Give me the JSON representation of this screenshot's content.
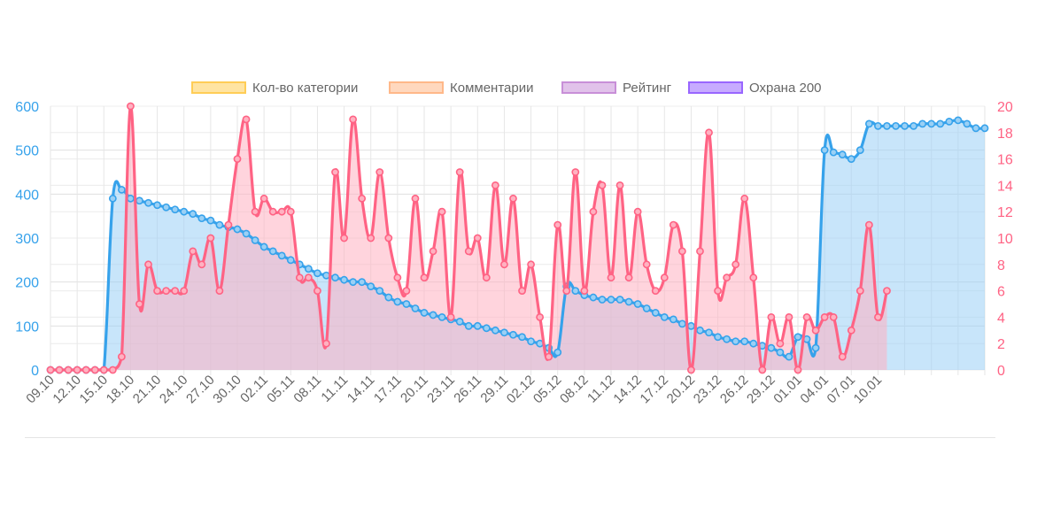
{
  "chart_data": {
    "type": "line",
    "colors": {
      "left_axis": "#36a2eb",
      "right_axis": "#ff6384",
      "series_blue": "#36a2eb",
      "series_blue_fill": "#9ad0f5",
      "series_red": "#ff6384",
      "series_red_fill": "#ffb1c1",
      "legend": [
        "#ffcd56",
        "#ffb889",
        "#c88fd8",
        "#9966ff"
      ]
    },
    "legend": {
      "placement": "top",
      "entries": [
        {
          "label": "Кол-во категории"
        },
        {
          "label": "Комментарии"
        },
        {
          "label": "Рейтинг"
        },
        {
          "label": "Охрана 200"
        }
      ]
    },
    "x_tick_labels": [
      "09.10",
      "12.10",
      "15.10",
      "18.10",
      "21.10",
      "24.10",
      "27.10",
      "30.10",
      "02.11",
      "05.11",
      "08.11",
      "11.11",
      "14.11",
      "17.11",
      "20.11",
      "23.11",
      "26.11",
      "29.11",
      "02.12",
      "05.12",
      "08.12",
      "11.12",
      "14.12",
      "17.12",
      "20.12",
      "23.12",
      "26.12",
      "29.12",
      "01.01",
      "04.01",
      "07.01",
      "10.01"
    ],
    "y_left": {
      "range": [
        0,
        600
      ],
      "ticks": [
        0,
        100,
        200,
        300,
        400,
        500,
        600
      ]
    },
    "y_right": {
      "range": [
        0,
        20
      ],
      "ticks": [
        0,
        2,
        4,
        6,
        8,
        10,
        12,
        14,
        16,
        18,
        20
      ]
    },
    "grid": true,
    "series": [
      {
        "axis": "left",
        "values": [
          0,
          0,
          0,
          0,
          0,
          0,
          0,
          390,
          410,
          390,
          385,
          380,
          375,
          370,
          365,
          360,
          355,
          345,
          340,
          330,
          325,
          320,
          310,
          295,
          280,
          270,
          260,
          250,
          240,
          230,
          220,
          215,
          210,
          205,
          200,
          200,
          190,
          180,
          165,
          155,
          150,
          140,
          130,
          125,
          120,
          115,
          110,
          100,
          100,
          95,
          90,
          85,
          80,
          75,
          65,
          60,
          50,
          40,
          190,
          180,
          170,
          165,
          160,
          160,
          160,
          155,
          150,
          140,
          130,
          120,
          115,
          105,
          100,
          90,
          85,
          75,
          70,
          65,
          65,
          60,
          55,
          50,
          40,
          30,
          75,
          70,
          50,
          500,
          495,
          490,
          480,
          500,
          560,
          555,
          555,
          555,
          555,
          555,
          560,
          560,
          560,
          565,
          568,
          560,
          550,
          550
        ]
      },
      {
        "axis": "right",
        "values": [
          0,
          0,
          0,
          0,
          0,
          0,
          0,
          0,
          1,
          20,
          5,
          8,
          6,
          6,
          6,
          6,
          9,
          8,
          10,
          6,
          11,
          16,
          19,
          12,
          13,
          12,
          12,
          12,
          7,
          7,
          6,
          2,
          15,
          10,
          19,
          13,
          10,
          15,
          10,
          7,
          6,
          13,
          7,
          9,
          12,
          4,
          15,
          9,
          10,
          7,
          14,
          8,
          13,
          6,
          8,
          4,
          1,
          11,
          6,
          15,
          6,
          12,
          14,
          7,
          14,
          7,
          12,
          8,
          6,
          7,
          11,
          9,
          0,
          9,
          18,
          6,
          7,
          8,
          13,
          7,
          0,
          4,
          2,
          4,
          0,
          4,
          3,
          4,
          4,
          1,
          3,
          6,
          11,
          4,
          6
        ]
      }
    ]
  }
}
